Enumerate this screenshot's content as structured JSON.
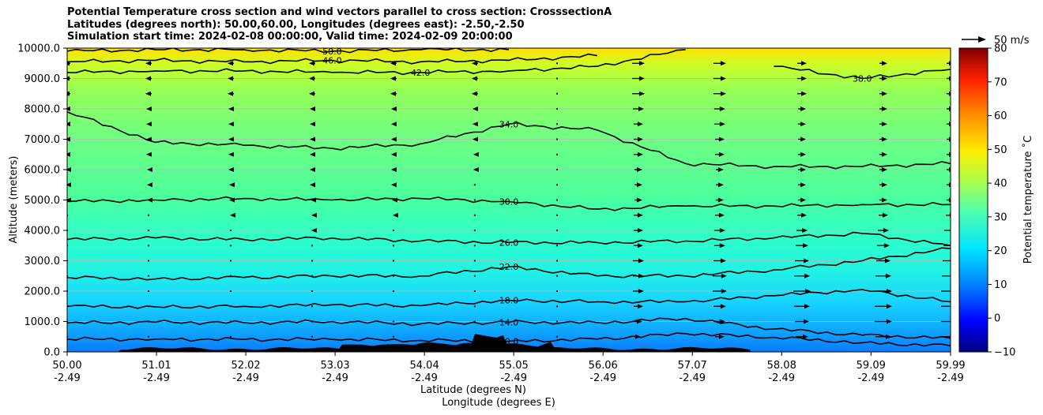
{
  "title_lines": [
    "Potential Temperature cross section and wind vectors parallel to cross section: CrosssectionA",
    "Latitudes (degrees north): 50.00,60.00, Longitudes (degrees east): -2.50,-2.50",
    "Simulation start time: 2024-02-08 00:00:00, Valid time: 2024-02-09 20:00:00"
  ],
  "quiver_key_label": "50 m/s",
  "chart_data": {
    "type": "heatmap",
    "description_type": "contourf cross section with contour lines and wind vectors",
    "ylabel": "Altitude (meters)",
    "xlabel_lines": [
      "Latitude (degrees N)",
      "Longitude (degrees E)"
    ],
    "colorbar_label": "Potential temperature ˚C",
    "colorbar_range": [
      -10,
      80
    ],
    "colorbar_ticks": [
      "−10",
      "0",
      "10",
      "20",
      "30",
      "40",
      "50",
      "60",
      "70",
      "80"
    ],
    "ylim": [
      0,
      10000
    ],
    "xlim": [
      50.0,
      59.99
    ],
    "yticks": [
      "0.0",
      "1000.0",
      "2000.0",
      "3000.0",
      "4000.0",
      "5000.0",
      "6000.0",
      "7000.0",
      "8000.0",
      "9000.0",
      "10000.0"
    ],
    "xticks": [
      {
        "lat": "50.00",
        "lon": "-2.49"
      },
      {
        "lat": "51.01",
        "lon": "-2.49"
      },
      {
        "lat": "52.02",
        "lon": "-2.49"
      },
      {
        "lat": "53.03",
        "lon": "-2.49"
      },
      {
        "lat": "54.04",
        "lon": "-2.49"
      },
      {
        "lat": "55.05",
        "lon": "-2.49"
      },
      {
        "lat": "56.06",
        "lon": "-2.49"
      },
      {
        "lat": "57.07",
        "lon": "-2.49"
      },
      {
        "lat": "58.08",
        "lon": "-2.49"
      },
      {
        "lat": "59.09",
        "lon": "-2.49"
      },
      {
        "lat": "59.99",
        "lon": "-2.49"
      }
    ],
    "grid": true,
    "contours": [
      {
        "level": 10,
        "label": "10.0",
        "y": [
          420,
          420,
          410,
          410,
          380,
          350,
          420,
          600,
          480,
          300,
          200
        ]
      },
      {
        "level": 14,
        "label": "14.0",
        "y": [
          950,
          980,
          960,
          1000,
          920,
          980,
          960,
          1100,
          750,
          550,
          450
        ]
      },
      {
        "level": 18,
        "label": "18.0",
        "y": [
          1500,
          1480,
          1500,
          1550,
          1520,
          1700,
          1650,
          1650,
          1850,
          2050,
          1650
        ]
      },
      {
        "level": 22,
        "label": "22.0",
        "y": [
          2450,
          2400,
          2450,
          2500,
          2500,
          2800,
          2500,
          2500,
          2700,
          3000,
          3400
        ]
      },
      {
        "level": 26,
        "label": "26.0",
        "y": [
          3700,
          3750,
          3700,
          3750,
          3650,
          3600,
          3600,
          3650,
          3750,
          3900,
          3500
        ]
      },
      {
        "level": 30,
        "label": "30.0",
        "y": [
          4950,
          5000,
          5050,
          5000,
          5050,
          4950,
          4700,
          4800,
          4800,
          4850,
          4850
        ]
      },
      {
        "level": 34,
        "label": "34.0",
        "y": [
          7900,
          6900,
          6800,
          6700,
          6850,
          7500,
          7300,
          6200,
          6100,
          6100,
          6200
        ]
      },
      {
        "level": 38,
        "label": "38.0",
        "y": [
          null,
          null,
          null,
          null,
          null,
          null,
          null,
          null,
          9400,
          9000,
          9300
        ]
      },
      {
        "level": 42,
        "label": "42.0",
        "y": [
          9200,
          9250,
          9250,
          9200,
          9200,
          9250,
          9400,
          9950,
          null,
          null,
          null
        ]
      },
      {
        "level": 46,
        "label": "46.0",
        "y": [
          9550,
          9600,
          9550,
          9600,
          9550,
          9600,
          9750,
          null,
          null,
          null,
          null
        ]
      },
      {
        "level": 50,
        "label": "50.0",
        "y": [
          9900,
          9950,
          9950,
          9900,
          9950,
          9950,
          null,
          null,
          null,
          null,
          null
        ]
      }
    ],
    "wind_vectors": {
      "levels_m": [
        500,
        1000,
        1500,
        2000,
        2500,
        3000,
        3500,
        4000,
        4500,
        5000,
        5500,
        6000,
        6500,
        7000,
        7500,
        8000,
        8500,
        9000,
        9500
      ],
      "columns_lat": [
        50.0,
        50.92,
        51.85,
        52.77,
        53.69,
        54.61,
        55.54,
        56.46,
        57.38,
        58.31,
        59.23,
        59.99
      ],
      "u_ms": [
        [
          0,
          0,
          0,
          0,
          0,
          0,
          0,
          3,
          6,
          8,
          10,
          12
        ],
        [
          0,
          0,
          0,
          0,
          0,
          0,
          0,
          5,
          7,
          9,
          11,
          12
        ],
        [
          0,
          0,
          0,
          0,
          0,
          0,
          0,
          6,
          8,
          10,
          11,
          12
        ],
        [
          0,
          0,
          0,
          0,
          0,
          0,
          0,
          7,
          9,
          11,
          11,
          12
        ],
        [
          0,
          0,
          0,
          0,
          0,
          0,
          0,
          7,
          9,
          10,
          10,
          11
        ],
        [
          0,
          0,
          0,
          0,
          0,
          0,
          0,
          7,
          8,
          9,
          9,
          10
        ],
        [
          0,
          0,
          0,
          0,
          0,
          0,
          0,
          6,
          7,
          8,
          8,
          9
        ],
        [
          0,
          0,
          0,
          -1,
          0,
          0,
          0,
          6,
          7,
          7,
          7,
          8
        ],
        [
          0,
          0,
          -1,
          -1,
          -1,
          0,
          0,
          6,
          6,
          6,
          6,
          6
        ],
        [
          -2,
          -2,
          -2,
          -2,
          -2,
          0,
          0,
          5,
          5,
          5,
          5,
          5
        ],
        [
          -2,
          -2,
          -2,
          -3,
          -3,
          0,
          0,
          5,
          5,
          5,
          5,
          5
        ],
        [
          -2,
          -2,
          -3,
          -3,
          -3,
          -2,
          0,
          5,
          5,
          5,
          5,
          5
        ],
        [
          -3,
          -3,
          -3,
          -3,
          -3,
          -2,
          0,
          6,
          6,
          5,
          5,
          5
        ],
        [
          -3,
          -3,
          -3,
          -3,
          -3,
          -3,
          0,
          6,
          6,
          5,
          5,
          5
        ],
        [
          -3,
          -3,
          -3,
          -3,
          -3,
          -3,
          0,
          6,
          7,
          5,
          5,
          5
        ],
        [
          -3,
          -3,
          -3,
          -3,
          -3,
          -3,
          0,
          7,
          7,
          5,
          5,
          5
        ],
        [
          -4,
          -4,
          -4,
          -4,
          -4,
          -4,
          0,
          8,
          8,
          6,
          5,
          5
        ],
        [
          -4,
          -4,
          -4,
          -4,
          -4,
          -4,
          0,
          8,
          8,
          6,
          5,
          5
        ],
        [
          -4,
          -4,
          -4,
          -4,
          -4,
          -4,
          0,
          8,
          8,
          6,
          5,
          5
        ]
      ]
    }
  }
}
